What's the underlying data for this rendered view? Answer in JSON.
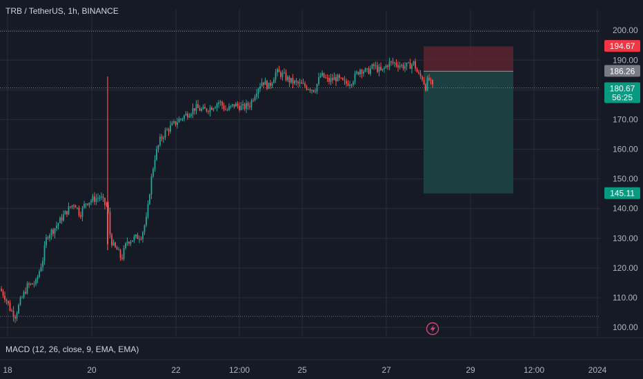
{
  "header": {
    "title": "TRB / TetherUS, 1h, BINANCE"
  },
  "indicator": {
    "label": "MACD (12, 26, close, 9, EMA, EMA)"
  },
  "colors": {
    "background": "#161a25",
    "up": "#26a69a",
    "down": "#ef5350",
    "grid": "#2a2e39",
    "axis_text": "#b2b5be",
    "stop_zone": "#5b2530",
    "target_zone": "#1c4844",
    "dotted_line": "#787b86"
  },
  "chart_data": {
    "type": "candlestick",
    "symbol": "TRB / TetherUS",
    "interval": "1h",
    "exchange": "BINANCE",
    "ylim": [
      97,
      207
    ],
    "y_ticks": [
      100,
      110,
      120,
      130,
      140,
      150,
      160,
      170,
      180,
      190,
      200
    ],
    "y_tick_labels": [
      "100.00",
      "110.00",
      "120.00",
      "130.00",
      "140.00",
      "150.00",
      "160.00",
      "170.00",
      "180.00",
      "190.00",
      "200.00"
    ],
    "x_tick_labels": [
      "18",
      "20",
      "22",
      "12:00",
      "25",
      "27",
      "29",
      "12:00",
      "2024"
    ],
    "last_price": {
      "value": 180.67,
      "label": "180.67",
      "countdown": "56:25"
    },
    "price_labels": [
      {
        "value": 194.67,
        "label": "194.67",
        "kind": "stop"
      },
      {
        "value": 186.26,
        "label": "186.26",
        "kind": "entry"
      },
      {
        "value": 145.11,
        "label": "145.11",
        "kind": "target"
      }
    ],
    "dotted_levels": [
      199.7,
      103.7
    ],
    "position": {
      "side": "short",
      "entry": 186.26,
      "stop": 194.67,
      "target": 145.11
    },
    "price_path": [
      [
        0,
        113
      ],
      [
        8,
        110
      ],
      [
        15,
        106
      ],
      [
        22,
        104
      ],
      [
        30,
        109
      ],
      [
        40,
        114
      ],
      [
        52,
        115
      ],
      [
        62,
        123
      ],
      [
        68,
        131
      ],
      [
        78,
        133
      ],
      [
        90,
        137
      ],
      [
        100,
        140
      ],
      [
        108,
        142
      ],
      [
        116,
        138
      ],
      [
        124,
        142
      ],
      [
        134,
        143
      ],
      [
        145,
        144
      ],
      [
        153,
        141
      ],
      [
        156,
        141
      ],
      [
        160,
        130
      ],
      [
        165,
        127
      ],
      [
        170,
        126
      ],
      [
        176,
        123
      ],
      [
        184,
        129
      ],
      [
        195,
        130
      ],
      [
        205,
        131
      ],
      [
        213,
        137
      ],
      [
        218,
        148
      ],
      [
        224,
        157
      ],
      [
        232,
        163
      ],
      [
        240,
        166
      ],
      [
        250,
        168
      ],
      [
        260,
        170
      ],
      [
        272,
        172
      ],
      [
        283,
        174
      ],
      [
        295,
        173
      ],
      [
        305,
        174
      ],
      [
        318,
        176
      ],
      [
        328,
        173
      ],
      [
        340,
        175
      ],
      [
        352,
        174
      ],
      [
        362,
        175
      ],
      [
        372,
        180
      ],
      [
        380,
        183
      ],
      [
        390,
        181
      ],
      [
        400,
        186
      ],
      [
        410,
        185
      ],
      [
        420,
        183
      ],
      [
        432,
        182
      ],
      [
        445,
        181
      ],
      [
        456,
        180
      ],
      [
        465,
        185
      ],
      [
        476,
        183
      ],
      [
        488,
        184
      ],
      [
        500,
        182
      ],
      [
        510,
        183
      ],
      [
        522,
        187
      ],
      [
        532,
        186
      ],
      [
        542,
        188
      ],
      [
        553,
        186
      ],
      [
        563,
        189
      ],
      [
        573,
        189
      ],
      [
        583,
        188
      ],
      [
        592,
        188
      ],
      [
        600,
        189
      ],
      [
        606,
        185
      ],
      [
        612,
        184
      ],
      [
        617,
        181
      ],
      [
        621,
        184
      ],
      [
        627,
        180.7
      ]
    ],
    "spike_candle": {
      "x_label_near": "20",
      "high": 184.5,
      "low": 126
    },
    "grid": true
  }
}
